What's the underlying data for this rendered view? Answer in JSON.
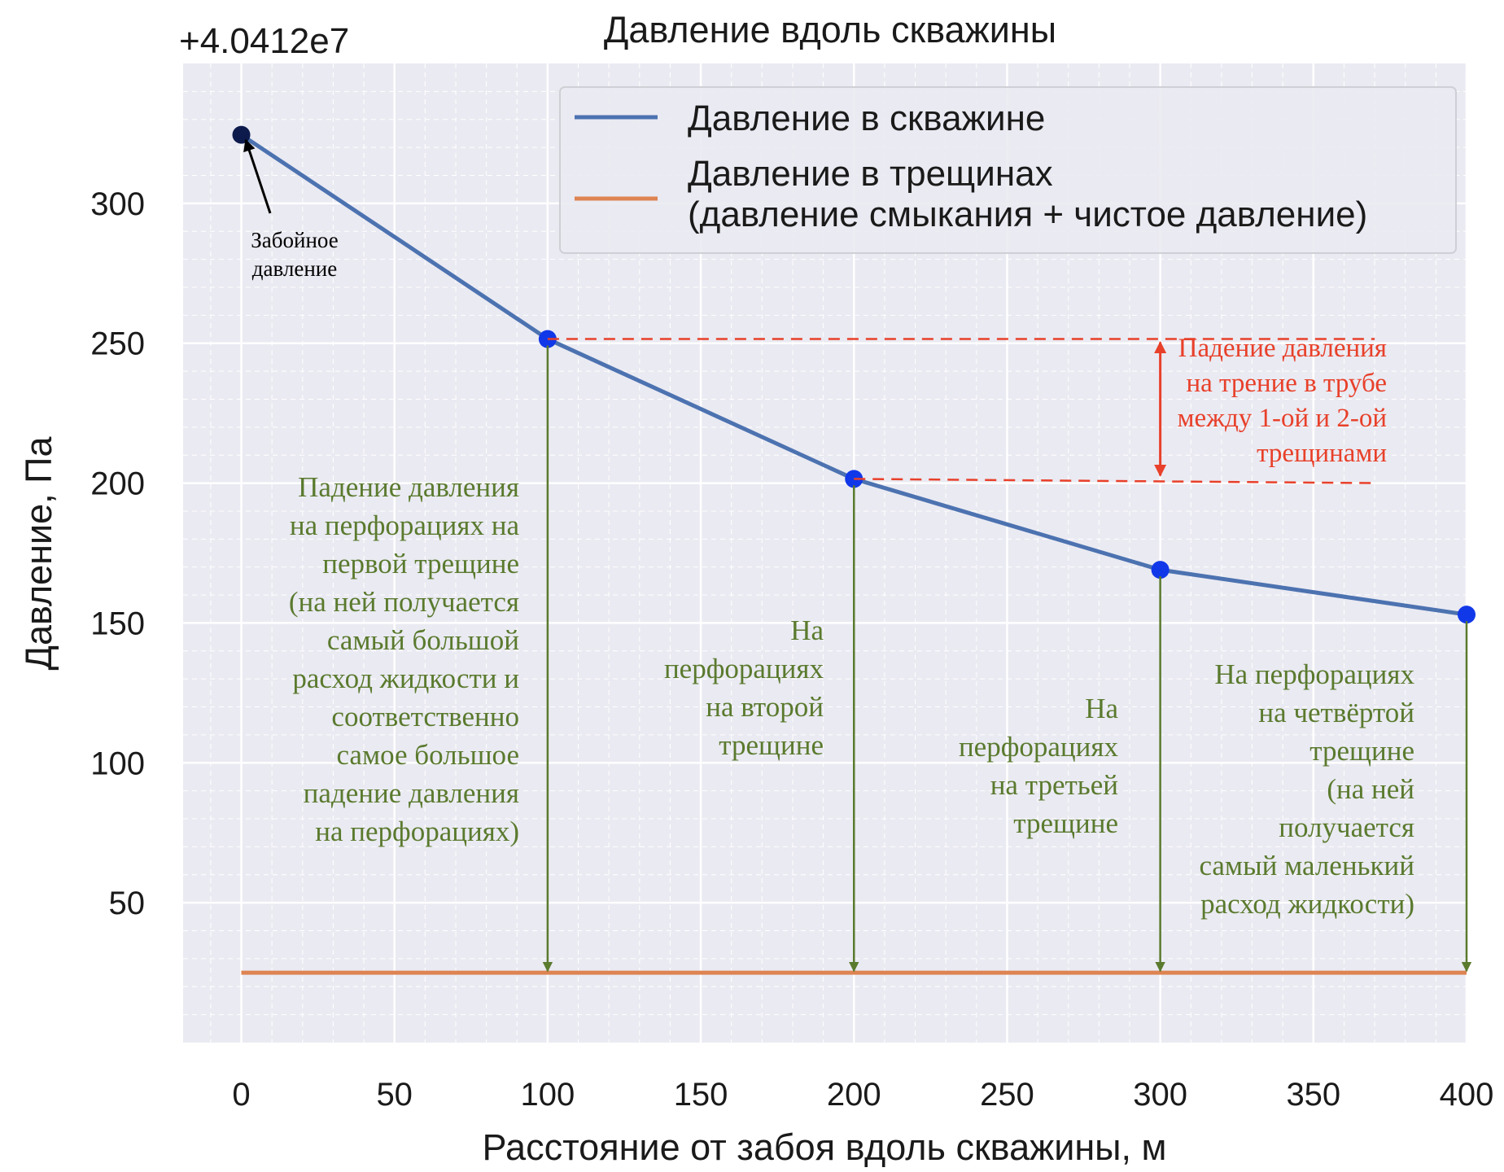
{
  "chart_data": {
    "type": "line",
    "title": "Давление вдоль скважины",
    "offset_label": "+4.0412e7",
    "xlabel": "Расстояние от забоя вдоль скважины, м",
    "ylabel": "Давление, Па",
    "x_ticks": [
      0,
      50,
      100,
      150,
      200,
      250,
      300,
      350,
      400
    ],
    "y_ticks": [
      50,
      100,
      150,
      200,
      250,
      300
    ],
    "xlim": [
      -19,
      400
    ],
    "ylim": [
      0,
      350
    ],
    "grid": true,
    "legend_position": "top-right",
    "series": [
      {
        "name": "Давление в скважине",
        "color": "#4c72b0",
        "x": [
          0,
          100,
          200,
          300,
          400
        ],
        "y": [
          324.5,
          251.5,
          201.5,
          169,
          153
        ]
      },
      {
        "name": "Давление в трещинах\n(давление смыкания + чистое давление)",
        "color": "#dd8452",
        "x": [
          0,
          400
        ],
        "y": [
          25,
          25
        ]
      }
    ],
    "annotations": {
      "bottomhole": {
        "text": "Забойное\nдавление",
        "color": "#000000"
      },
      "friction": {
        "text": "Падение давления\nна трение в трубе\nмежду 1-ой и 2-ой\nтрещинами",
        "color": "#e8402a"
      },
      "perf_labels": [
        {
          "text": "Падение давления\nна перфорациях на\nпервой трещине\n(на ней получается\nсамый большой\nрасход жидкости и\nсоответственно\nсамое большое\nпадение давления\nна перфорациях)",
          "color": "#5a7a2e"
        },
        {
          "text": "На\nперфорациях\nна второй\nтрещине",
          "color": "#5a7a2e"
        },
        {
          "text": "На\nперфорациях\nна третьей\nтрещине",
          "color": "#5a7a2e"
        },
        {
          "text": "На перфорациях\nна четвёртой\nтрещине\n(на ней\nполучается\nсамый маленький\nрасход жидкости)",
          "color": "#5a7a2e"
        }
      ]
    }
  }
}
